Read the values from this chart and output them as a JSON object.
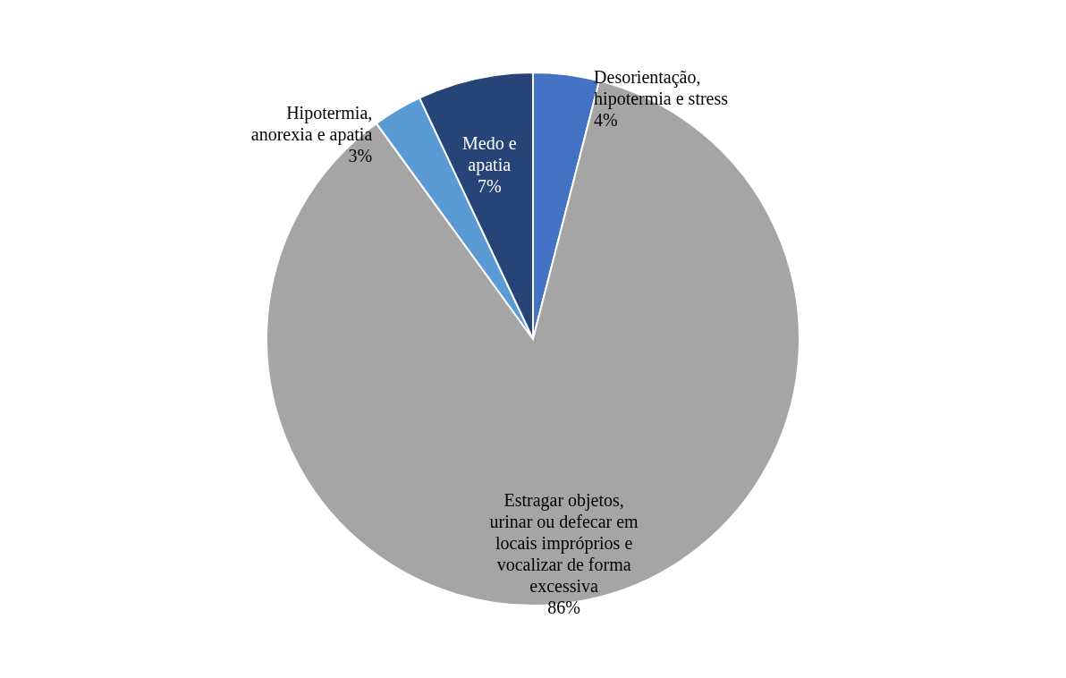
{
  "chart_data": {
    "type": "pie",
    "categories": [
      "Desorientação, hipotermia e stress",
      "Estragar objetos, urinar ou defecar em locais impróprios e vocalizar de forma excessiva",
      "Hipotermia, anorexia e apatia",
      "Medo e apatia"
    ],
    "values": [
      4,
      86,
      3,
      7
    ],
    "colors": [
      "#4472c4",
      "#a5a5a5",
      "#5b9bd5",
      "#264478"
    ],
    "value_labels": [
      "4%",
      "86%",
      "3%",
      "7%"
    ]
  }
}
